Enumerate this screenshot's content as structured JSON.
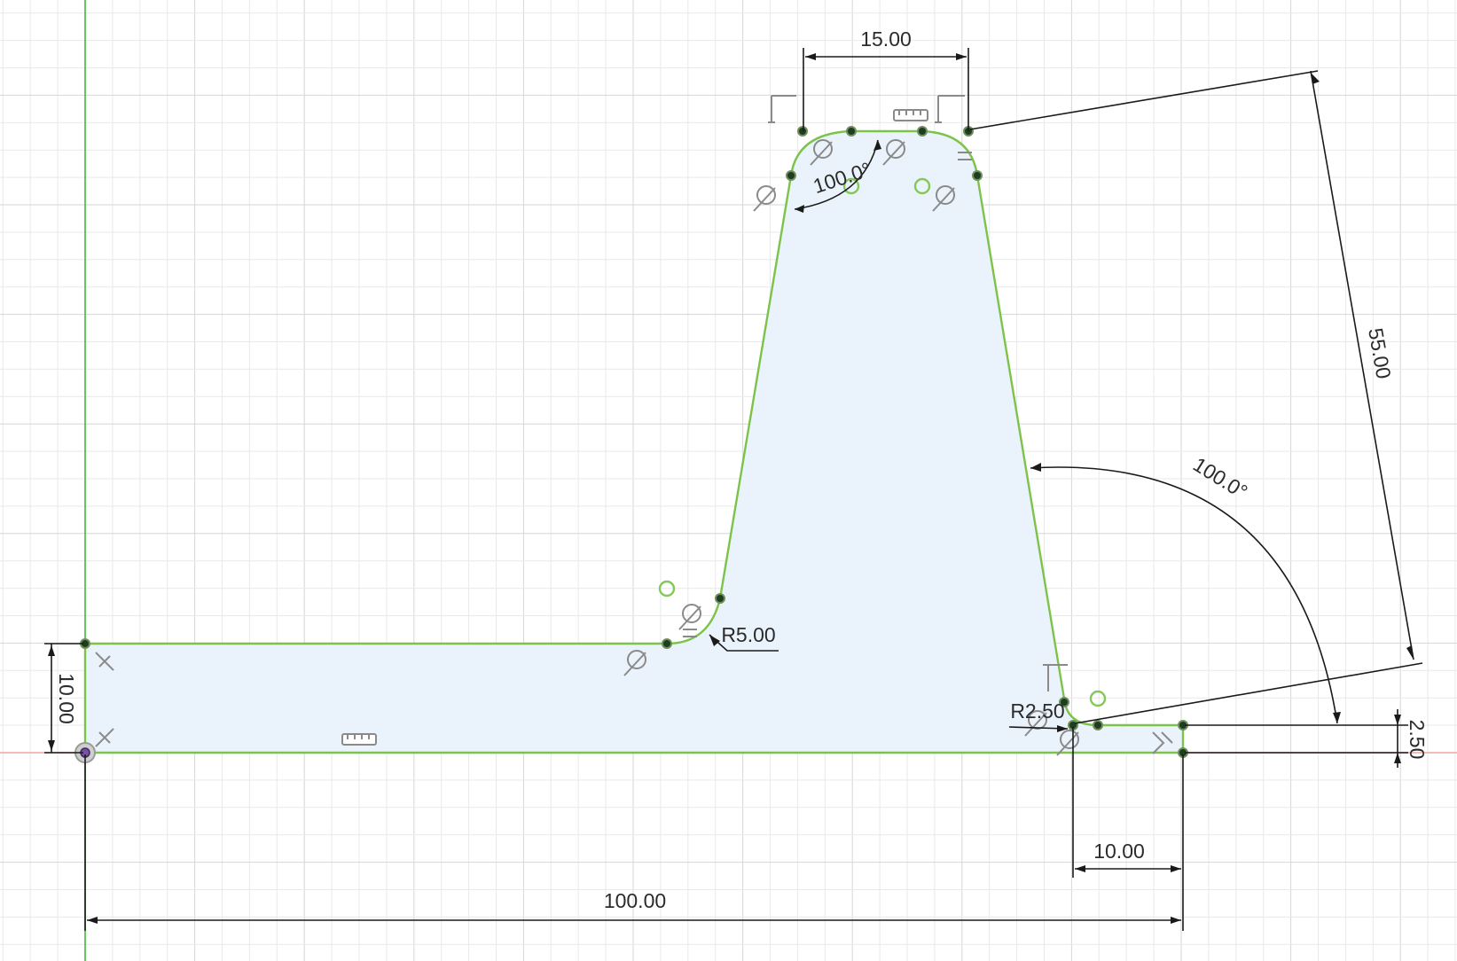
{
  "colors": {
    "background": "#ffffff",
    "grid_minor": "#e9e9e9",
    "grid_major": "#d6d6d6",
    "y_axis": "#56c04a",
    "x_axis": "#f2b3ad",
    "profile_stroke": "#7cc34a",
    "profile_fill": "#eaf3fb",
    "dimension": "#1a1a1a",
    "sketch_point": "#1e3d22",
    "origin": "#7a4fa6"
  },
  "dimensions": {
    "top_width": "15.00",
    "top_angle": "100.0°",
    "right_angle": "100.0°",
    "slant_length": "55.00",
    "fillet_left": "R5.00",
    "fillet_right": "R2.50",
    "base_height": "10.00",
    "right_step_height": "2.50",
    "right_step_width": "10.00",
    "total_width": "100.00"
  },
  "constraint_icons": [
    "horizontal-constraint-icon",
    "vertical-constraint-icon",
    "tangent-constraint-icon",
    "perpendicular-constraint-icon",
    "parallel-constraint-icon",
    "coincident-constraint-icon"
  ]
}
